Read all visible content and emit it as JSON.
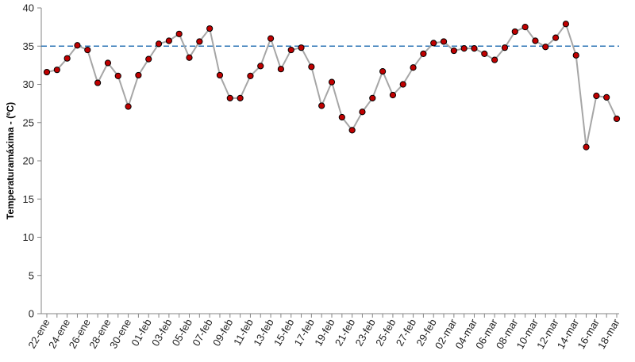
{
  "chart_data": {
    "type": "line",
    "title": "",
    "xlabel": "",
    "ylabel": "Temperaturamáxima - (ºC)",
    "ylim": [
      0,
      40
    ],
    "yticks": [
      0,
      5,
      10,
      15,
      20,
      25,
      30,
      35,
      40
    ],
    "grid": false,
    "legend": "none",
    "x": [
      "22-ene",
      "23-ene",
      "24-ene",
      "25-ene",
      "26-ene",
      "27-ene",
      "28-ene",
      "29-ene",
      "30-ene",
      "31-ene",
      "01-feb",
      "02-feb",
      "03-feb",
      "04-feb",
      "05-feb",
      "06-feb",
      "07-feb",
      "08-feb",
      "09-feb",
      "10-feb",
      "11-feb",
      "12-feb",
      "13-feb",
      "14-feb",
      "15-feb",
      "16-feb",
      "17-feb",
      "18-feb",
      "19-feb",
      "20-feb",
      "21-feb",
      "22-feb",
      "23-feb",
      "24-feb",
      "25-feb",
      "26-feb",
      "27-feb",
      "28-feb",
      "29-feb",
      "01-mar",
      "02-mar",
      "03-mar",
      "04-mar",
      "05-mar",
      "06-mar",
      "07-mar",
      "08-mar",
      "09-mar",
      "10-mar",
      "11-mar",
      "12-mar",
      "13-mar",
      "14-mar",
      "15-mar",
      "16-mar",
      "17-mar",
      "18-mar"
    ],
    "x_tick_labels": [
      "22-ene",
      "24-ene",
      "26-ene",
      "28-ene",
      "30-ene",
      "01-feb",
      "03-feb",
      "05-feb",
      "07-feb",
      "09-feb",
      "11-feb",
      "13-feb",
      "15-feb",
      "17-feb",
      "19-feb",
      "21-feb",
      "23-feb",
      "25-feb",
      "27-feb",
      "29-feb",
      "02-mar",
      "04-mar",
      "06-mar",
      "08-mar",
      "10-mar",
      "12-mar",
      "14-mar",
      "16-mar",
      "18-mar"
    ],
    "series": [
      {
        "values": [
          31.6,
          31.9,
          33.4,
          35.1,
          34.5,
          30.2,
          32.8,
          31.1,
          27.1,
          31.2,
          33.3,
          35.3,
          35.7,
          36.6,
          33.5,
          35.6,
          37.3,
          31.2,
          28.2,
          28.2,
          31.1,
          32.4,
          36.0,
          32.0,
          34.5,
          34.8,
          32.3,
          27.2,
          30.3,
          25.7,
          24.0,
          26.4,
          28.2,
          31.7,
          28.6,
          30.0,
          32.2,
          34.0,
          35.4,
          35.6,
          34.4,
          34.7,
          34.7,
          34.0,
          33.2,
          34.8,
          36.9,
          37.5,
          35.7,
          34.9,
          36.1,
          37.9,
          33.8,
          21.8,
          28.5,
          28.3,
          25.5
        ],
        "line_color": "#a6a6a6",
        "marker_color": "#c00000"
      }
    ],
    "reference_line": {
      "y": 35,
      "color": "#2e75b6"
    }
  }
}
